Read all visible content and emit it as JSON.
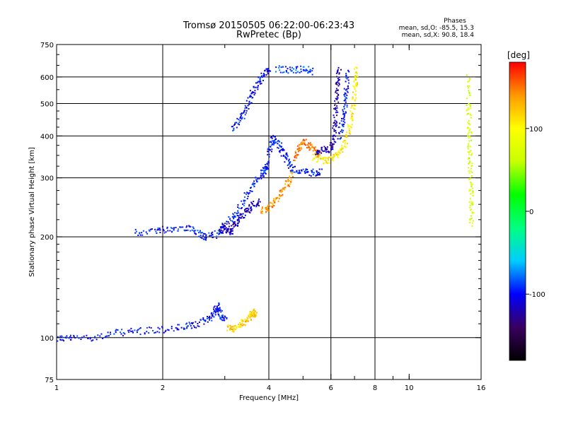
{
  "chart_data": {
    "type": "scatter",
    "title": "Tromsø 20150505 06:22:00-06:23:43",
    "subtitle": "RwPretec (Bp)",
    "xlabel": "Frequency [MHz]",
    "ylabel": "Stationary phase Virtual Height [km]",
    "x_scale": "log",
    "y_scale": "log",
    "xlim": [
      1,
      16
    ],
    "ylim": [
      75,
      750
    ],
    "x_ticks": [
      1,
      2,
      4,
      6,
      8,
      10,
      16
    ],
    "x_tick_labels": [
      "1",
      "2",
      "4",
      "6",
      "8",
      "10",
      "16"
    ],
    "x_gridlines": [
      2,
      4,
      6,
      8
    ],
    "x_minor_ticks": [
      3,
      5,
      7,
      9,
      10
    ],
    "y_ticks": [
      75,
      100,
      200,
      300,
      400,
      500,
      600,
      750
    ],
    "y_tick_labels": [
      "75",
      "100",
      "200",
      "300",
      "400",
      "500",
      "600",
      "750"
    ],
    "y_gridlines": [
      100,
      200,
      300,
      400,
      500,
      600
    ],
    "grid": true,
    "phases_box": {
      "title": "Phases",
      "line_o": "mean, sd,O: -85.5, 15.3",
      "line_x": "mean, sd,X:  90.8, 18.4"
    },
    "colorbar": {
      "label": "[deg]",
      "range": [
        -180,
        180
      ],
      "ticks": [
        100,
        0,
        -100
      ],
      "tick_labels": [
        "100",
        "0",
        "-100"
      ],
      "colormap": [
        "#000000",
        "#3a0060",
        "#0000ff",
        "#00ccff",
        "#00ff80",
        "#00ff00",
        "#c8ff00",
        "#ffff00",
        "#ff9900",
        "#ff0000"
      ]
    },
    "series": [
      {
        "trace": [
          [
            1.0,
            100
          ],
          [
            1.1,
            100
          ],
          [
            1.3,
            101
          ],
          [
            1.5,
            104
          ],
          [
            1.7,
            105
          ],
          [
            2.0,
            106
          ],
          [
            2.3,
            108
          ],
          [
            2.5,
            110
          ],
          [
            2.7,
            115
          ],
          [
            2.8,
            120
          ],
          [
            2.85,
            125
          ],
          [
            2.9,
            118
          ],
          [
            3.0,
            112
          ]
        ],
        "phase": -100
      },
      {
        "trace": [
          [
            3.05,
            108
          ],
          [
            3.15,
            106
          ],
          [
            3.3,
            110
          ],
          [
            3.45,
            112
          ],
          [
            3.55,
            118
          ],
          [
            3.6,
            120
          ],
          [
            3.65,
            116
          ]
        ],
        "phase": 120
      },
      {
        "trace": [
          [
            1.65,
            206
          ],
          [
            1.9,
            210
          ],
          [
            2.1,
            212
          ],
          [
            2.35,
            215
          ],
          [
            2.5,
            205
          ],
          [
            2.65,
            200
          ],
          [
            2.85,
            205
          ],
          [
            3.0,
            220
          ],
          [
            3.2,
            235
          ],
          [
            3.4,
            260
          ],
          [
            3.6,
            285
          ],
          [
            3.8,
            310
          ],
          [
            3.95,
            330
          ]
        ],
        "phase": -95
      },
      {
        "trace": [
          [
            2.9,
            210
          ],
          [
            3.0,
            215
          ],
          [
            3.1,
            205
          ],
          [
            3.2,
            220
          ],
          [
            3.3,
            230
          ],
          [
            3.45,
            240
          ],
          [
            3.6,
            250
          ],
          [
            3.75,
            255
          ]
        ],
        "phase": -115
      },
      {
        "trace": [
          [
            3.85,
            300
          ],
          [
            3.95,
            340
          ],
          [
            4.05,
            385
          ],
          [
            4.15,
            395
          ],
          [
            4.3,
            370
          ],
          [
            4.45,
            345
          ],
          [
            4.6,
            325
          ],
          [
            4.9,
            315
          ],
          [
            5.3,
            312
          ],
          [
            5.6,
            315
          ]
        ],
        "phase": -100
      },
      {
        "trace": [
          [
            3.8,
            240
          ],
          [
            3.95,
            245
          ],
          [
            4.1,
            255
          ],
          [
            4.3,
            270
          ],
          [
            4.5,
            290
          ],
          [
            4.6,
            310
          ]
        ],
        "phase": 140
      },
      {
        "trace": [
          [
            4.7,
            345
          ],
          [
            4.85,
            370
          ],
          [
            5.0,
            385
          ],
          [
            5.2,
            375
          ],
          [
            5.4,
            362
          ],
          [
            5.55,
            355
          ]
        ],
        "phase": 150
      },
      {
        "trace": [
          [
            5.3,
            350
          ],
          [
            5.6,
            340
          ],
          [
            5.9,
            340
          ],
          [
            6.2,
            350
          ],
          [
            6.5,
            375
          ],
          [
            6.7,
            410
          ],
          [
            6.85,
            460
          ],
          [
            6.95,
            520
          ],
          [
            7.0,
            580
          ],
          [
            7.05,
            640
          ]
        ],
        "phase": 105
      },
      {
        "trace": [
          [
            5.4,
            360
          ],
          [
            5.7,
            365
          ],
          [
            6.0,
            370
          ],
          [
            6.1,
            400
          ],
          [
            6.15,
            450
          ],
          [
            6.2,
            520
          ],
          [
            6.25,
            580
          ],
          [
            6.3,
            630
          ]
        ],
        "phase": -120
      },
      {
        "trace": [
          [
            6.3,
            400
          ],
          [
            6.45,
            440
          ],
          [
            6.55,
            490
          ],
          [
            6.6,
            550
          ],
          [
            6.65,
            620
          ]
        ],
        "phase": -100
      },
      {
        "trace": [
          [
            3.15,
            420
          ],
          [
            3.3,
            450
          ],
          [
            3.45,
            490
          ],
          [
            3.55,
            530
          ],
          [
            3.7,
            570
          ],
          [
            3.85,
            610
          ],
          [
            4.0,
            640
          ]
        ],
        "phase": -100
      },
      {
        "trace": [
          [
            4.2,
            640
          ],
          [
            4.6,
            630
          ],
          [
            5.0,
            635
          ],
          [
            5.3,
            625
          ]
        ],
        "phase": -90
      },
      {
        "trace": [
          [
            14.6,
            600
          ],
          [
            14.7,
            500
          ],
          [
            14.75,
            440
          ],
          [
            14.8,
            380
          ],
          [
            14.85,
            330
          ],
          [
            14.9,
            290
          ],
          [
            14.95,
            250
          ],
          [
            15.0,
            215
          ]
        ],
        "phase": 70
      }
    ]
  }
}
